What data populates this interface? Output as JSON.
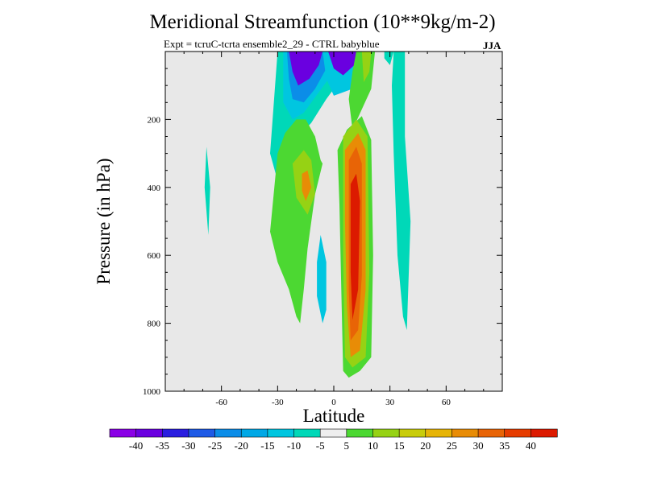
{
  "chart_data": {
    "type": "contour",
    "title": "Meridional Streamfunction (10**9kg/m-2)",
    "subtitle": "Expt = tcruC-tcrta  ensemble2_29 - CTRL babyblue",
    "season": "JJA",
    "xlabel": "Latitude",
    "ylabel": "Pressure (in hPa)",
    "xlim": [
      -90,
      90
    ],
    "ylim": [
      1000,
      0
    ],
    "xticks": [
      {
        "v": -60,
        "label": "-60"
      },
      {
        "v": -30,
        "label": "-30"
      },
      {
        "v": 0,
        "label": "0"
      },
      {
        "v": 30,
        "label": "30"
      },
      {
        "v": 60,
        "label": "60"
      }
    ],
    "yticks": [
      {
        "v": 200,
        "label": "200"
      },
      {
        "v": 400,
        "label": "400"
      },
      {
        "v": 600,
        "label": "600"
      },
      {
        "v": 800,
        "label": "800"
      },
      {
        "v": 1000,
        "label": "1000"
      }
    ],
    "colorbar": {
      "colors": [
        "#8a00e6",
        "#6a00e0",
        "#2a1ee0",
        "#1e5ae6",
        "#0b8de8",
        "#00a8e6",
        "#00c6e0",
        "#00d8b8",
        "#eeeeee",
        "#4cd832",
        "#96d214",
        "#c8cc0a",
        "#e6b406",
        "#e88c06",
        "#e86406",
        "#e63c00",
        "#dc1a00"
      ],
      "labels": [
        "-40",
        "-35",
        "-30",
        "-25",
        "-20",
        "-15",
        "-10",
        "-5",
        "5",
        "10",
        "15",
        "20",
        "25",
        "30",
        "35",
        "40"
      ]
    },
    "regions": [
      {
        "name": "teal-southern-stub",
        "level": -5,
        "pts": [
          [
            -68,
            280
          ],
          [
            -66,
            400
          ],
          [
            -67,
            540
          ],
          [
            -69,
            400
          ]
        ]
      },
      {
        "name": "teal-southern-upper",
        "level": -5,
        "pts": [
          [
            -30,
            0
          ],
          [
            2,
            0
          ],
          [
            4,
            80
          ],
          [
            -4,
            140
          ],
          [
            -12,
            210
          ],
          [
            -22,
            270
          ],
          [
            -26,
            350
          ],
          [
            -30,
            380
          ],
          [
            -34,
            300
          ]
        ]
      },
      {
        "name": "cyan-south-1",
        "level": -10,
        "pts": [
          [
            -27,
            0
          ],
          [
            -1,
            0
          ],
          [
            0,
            60
          ],
          [
            -8,
            120
          ],
          [
            -16,
            180
          ],
          [
            -22,
            200
          ],
          [
            -27,
            150
          ]
        ]
      },
      {
        "name": "blue-south-1",
        "level": -20,
        "pts": [
          [
            -25,
            0
          ],
          [
            -3,
            0
          ],
          [
            -4,
            50
          ],
          [
            -10,
            110
          ],
          [
            -16,
            150
          ],
          [
            -22,
            140
          ],
          [
            -24,
            80
          ]
        ]
      },
      {
        "name": "purple-south-1",
        "level": -35,
        "pts": [
          [
            -24,
            0
          ],
          [
            -6,
            0
          ],
          [
            -8,
            40
          ],
          [
            -13,
            80
          ],
          [
            -19,
            100
          ],
          [
            -22,
            60
          ]
        ]
      },
      {
        "name": "cyan-south-2",
        "level": -10,
        "pts": [
          [
            -6,
            0
          ],
          [
            18,
            0
          ],
          [
            16,
            60
          ],
          [
            10,
            110
          ],
          [
            0,
            130
          ],
          [
            -4,
            80
          ]
        ]
      },
      {
        "name": "purple-south-2",
        "level": -35,
        "pts": [
          [
            -3,
            0
          ],
          [
            14,
            0
          ],
          [
            11,
            40
          ],
          [
            5,
            70
          ],
          [
            0,
            50
          ]
        ]
      },
      {
        "name": "green-north-upper",
        "level": 10,
        "pts": [
          [
            12,
            0
          ],
          [
            22,
            0
          ],
          [
            20,
            110
          ],
          [
            15,
            170
          ],
          [
            10,
            230
          ],
          [
            8,
            140
          ],
          [
            10,
            60
          ]
        ]
      },
      {
        "name": "yellow-north-upper",
        "level": 15,
        "pts": [
          [
            15,
            0
          ],
          [
            20,
            0
          ],
          [
            19,
            60
          ],
          [
            16,
            90
          ]
        ]
      },
      {
        "name": "teal-north-stub",
        "level": -5,
        "pts": [
          [
            27,
            0
          ],
          [
            32,
            0
          ],
          [
            30,
            40
          ],
          [
            27,
            20
          ]
        ]
      },
      {
        "name": "teal-north-main",
        "level": -5,
        "pts": [
          [
            32,
            0
          ],
          [
            38,
            0
          ],
          [
            38,
            250
          ],
          [
            41,
            500
          ],
          [
            39,
            820
          ],
          [
            37,
            780
          ],
          [
            34,
            600
          ],
          [
            32,
            300
          ],
          [
            31,
            100
          ]
        ]
      },
      {
        "name": "green-southern-cell",
        "level": 10,
        "pts": [
          [
            -34,
            530
          ],
          [
            -30,
            300
          ],
          [
            -26,
            240
          ],
          [
            -20,
            200
          ],
          [
            -15,
            200
          ],
          [
            -10,
            250
          ],
          [
            -7,
            320
          ],
          [
            -6,
            330
          ],
          [
            -10,
            420
          ],
          [
            -14,
            580
          ],
          [
            -16,
            700
          ],
          [
            -18,
            800
          ],
          [
            -20,
            780
          ],
          [
            -24,
            700
          ],
          [
            -30,
            620
          ]
        ]
      },
      {
        "name": "yellow-southern-cell",
        "level": 15,
        "pts": [
          [
            -22,
            330
          ],
          [
            -16,
            290
          ],
          [
            -12,
            320
          ],
          [
            -10,
            420
          ],
          [
            -14,
            480
          ],
          [
            -20,
            430
          ]
        ]
      },
      {
        "name": "orange-southern-cell",
        "level": 25,
        "pts": [
          [
            -17,
            360
          ],
          [
            -14,
            350
          ],
          [
            -12,
            400
          ],
          [
            -15,
            440
          ],
          [
            -17,
            410
          ]
        ]
      },
      {
        "name": "cyan-southern-sliver",
        "level": -10,
        "pts": [
          [
            -7,
            540
          ],
          [
            -4,
            620
          ],
          [
            -4,
            760
          ],
          [
            -6,
            800
          ],
          [
            -9,
            720
          ],
          [
            -9,
            620
          ]
        ]
      },
      {
        "name": "green-main-cell",
        "level": 10,
        "pts": [
          [
            2,
            290
          ],
          [
            7,
            230
          ],
          [
            15,
            190
          ],
          [
            20,
            260
          ],
          [
            21,
            600
          ],
          [
            20,
            900
          ],
          [
            14,
            940
          ],
          [
            8,
            960
          ],
          [
            5,
            940
          ],
          [
            4,
            700
          ],
          [
            3,
            450
          ]
        ]
      },
      {
        "name": "yellow-main-cell",
        "level": 15,
        "pts": [
          [
            5,
            250
          ],
          [
            12,
            200
          ],
          [
            18,
            250
          ],
          [
            19,
            650
          ],
          [
            17,
            900
          ],
          [
            10,
            930
          ],
          [
            6,
            900
          ],
          [
            5,
            600
          ]
        ]
      },
      {
        "name": "orange-main-cell",
        "level": 25,
        "pts": [
          [
            6,
            290
          ],
          [
            13,
            240
          ],
          [
            17,
            290
          ],
          [
            17,
            700
          ],
          [
            14,
            880
          ],
          [
            9,
            900
          ],
          [
            7,
            750
          ],
          [
            6,
            500
          ]
        ]
      },
      {
        "name": "red-orange-main-cell",
        "level": 30,
        "pts": [
          [
            8,
            320
          ],
          [
            12,
            280
          ],
          [
            15,
            330
          ],
          [
            15,
            660
          ],
          [
            13,
            820
          ],
          [
            9,
            850
          ],
          [
            8,
            700
          ]
        ]
      },
      {
        "name": "red-main-cell",
        "level": 40,
        "pts": [
          [
            9,
            390
          ],
          [
            12,
            360
          ],
          [
            14,
            440
          ],
          [
            13,
            700
          ],
          [
            10,
            790
          ],
          [
            9,
            650
          ]
        ]
      }
    ]
  }
}
